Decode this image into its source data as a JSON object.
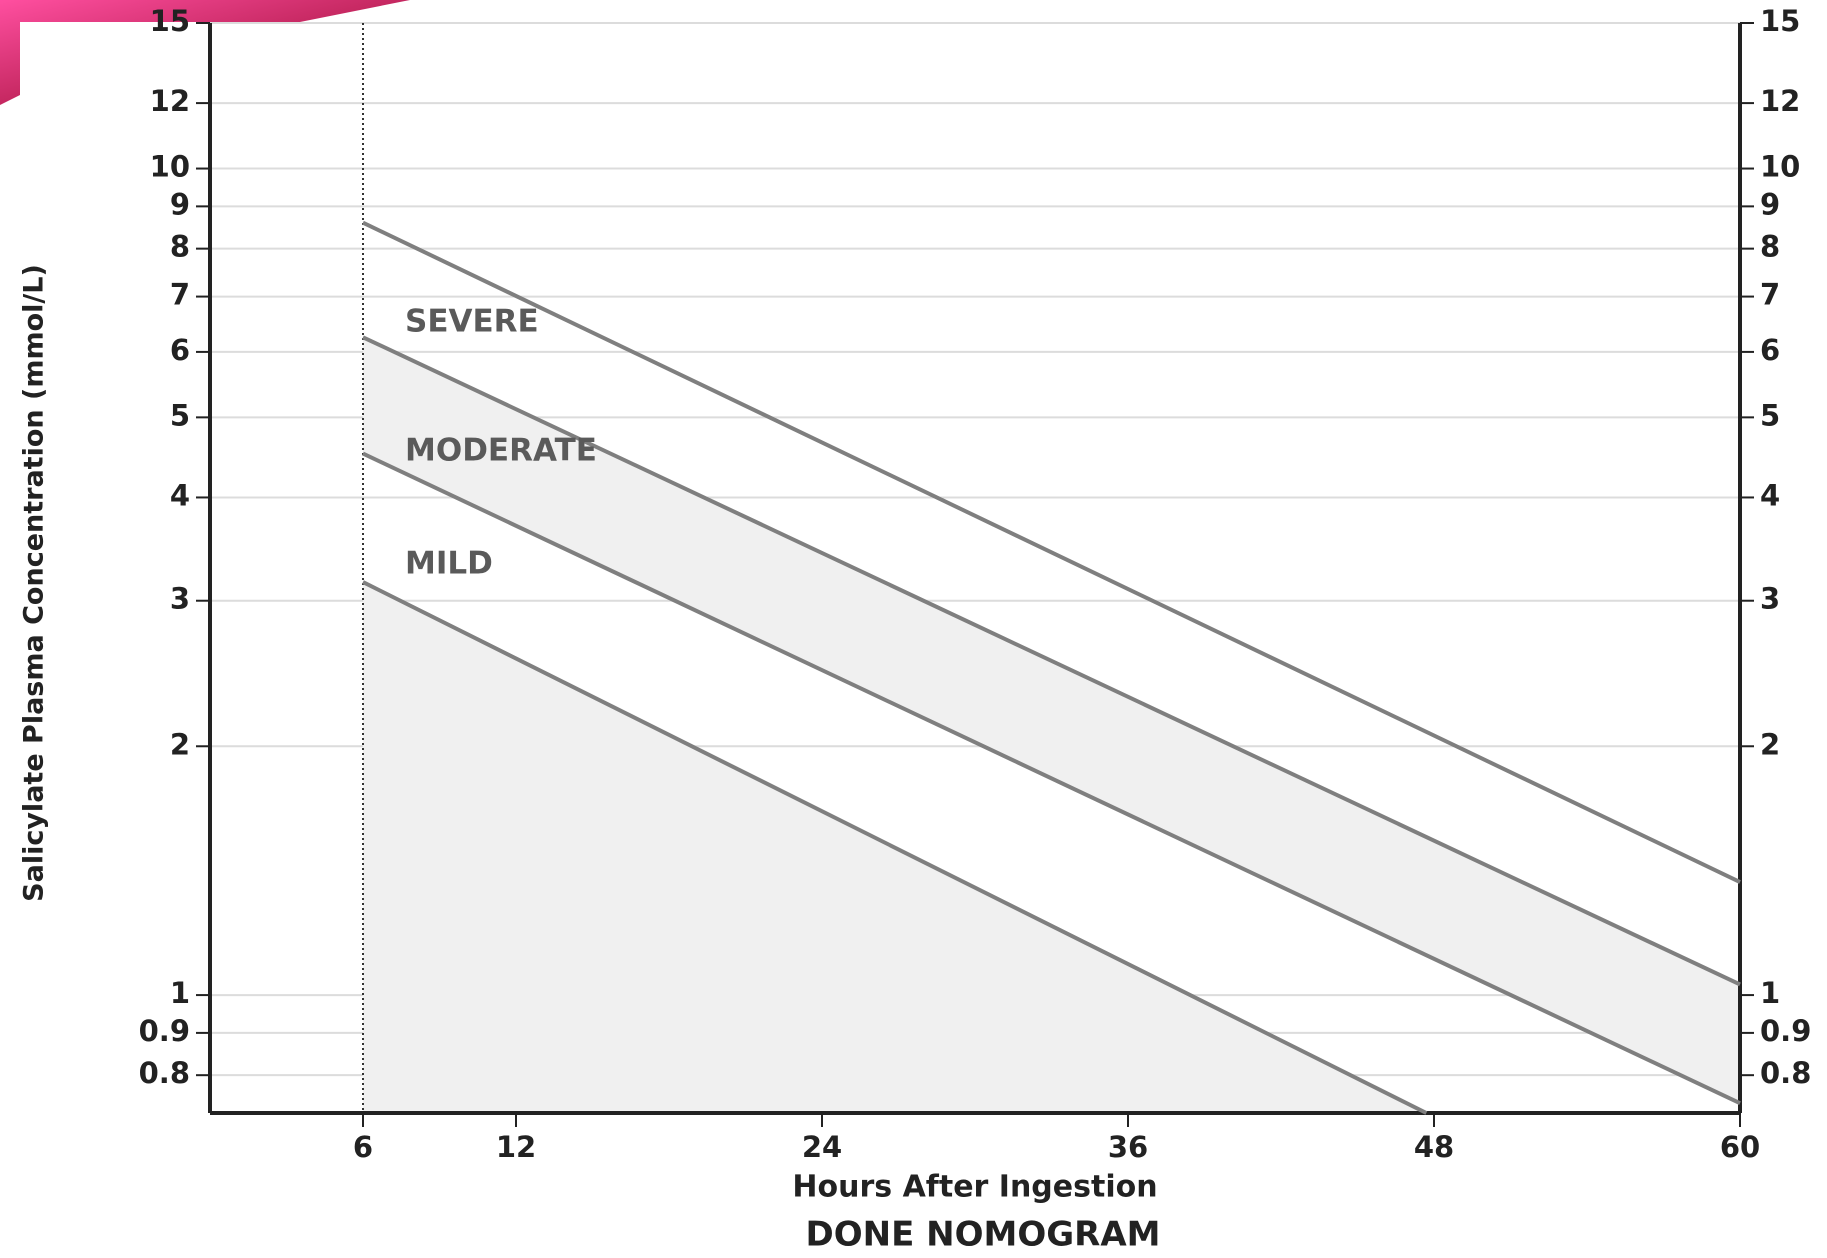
{
  "chart_data": {
    "type": "line",
    "title": "DONE NOMOGRAM",
    "xlabel": "Hours After Ingestion",
    "ylabel": "Salicylate Plasma Concentration (mmol/L)",
    "xlim": [
      0,
      60
    ],
    "xticks": [
      6,
      12,
      24,
      36,
      48,
      60
    ],
    "ylim": [
      0.72,
      15
    ],
    "yticks": [
      0.8,
      0.9,
      1,
      2,
      3,
      4,
      5,
      6,
      7,
      8,
      9,
      10,
      12,
      15
    ],
    "yscale": "log",
    "grid": true,
    "vline": 6,
    "annotations": [
      "SEVERE",
      "MODERATE",
      "MILD"
    ],
    "series": [
      {
        "color": "#7f7f7f",
        "x": [
          6,
          60
        ],
        "values": [
          8.6,
          1.37
        ]
      },
      {
        "color": "#7f7f7f",
        "x": [
          6,
          60
        ],
        "values": [
          6.25,
          1.03
        ]
      },
      {
        "color": "#7f7f7f",
        "x": [
          6,
          60
        ],
        "values": [
          4.52,
          0.74
        ]
      },
      {
        "color": "#7f7f7f",
        "x": [
          6,
          47.7
        ],
        "values": [
          3.16,
          0.72
        ]
      }
    ]
  }
}
